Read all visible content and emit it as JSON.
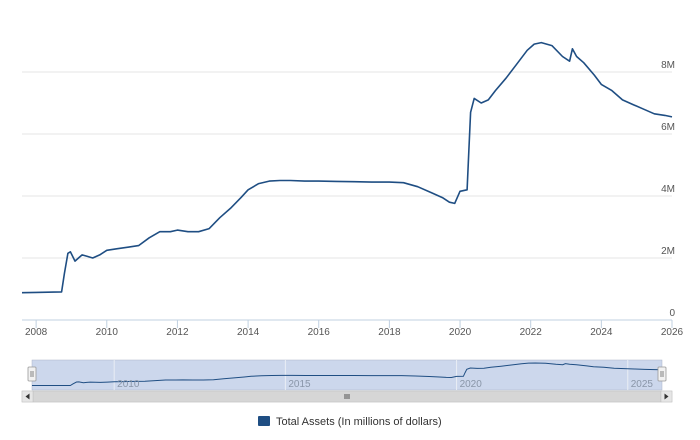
{
  "chart_data": {
    "type": "line",
    "title": "",
    "xlabel": "",
    "ylabel": "",
    "series_name": "Total Assets (In millions of dollars)",
    "series_color": "#1f4e83",
    "xlim": [
      2007.6,
      2026.0
    ],
    "ylim": [
      0,
      10000000
    ],
    "y_ticks": [
      {
        "value": 0,
        "label": "0"
      },
      {
        "value": 2000000,
        "label": "2M"
      },
      {
        "value": 4000000,
        "label": "4M"
      },
      {
        "value": 6000000,
        "label": "6M"
      },
      {
        "value": 8000000,
        "label": "8M"
      }
    ],
    "x_ticks": [
      {
        "value": 2008,
        "label": "2008"
      },
      {
        "value": 2010,
        "label": "2010"
      },
      {
        "value": 2012,
        "label": "2012"
      },
      {
        "value": 2014,
        "label": "2014"
      },
      {
        "value": 2016,
        "label": "2016"
      },
      {
        "value": 2018,
        "label": "2018"
      },
      {
        "value": 2020,
        "label": "2020"
      },
      {
        "value": 2022,
        "label": "2022"
      },
      {
        "value": 2024,
        "label": "2024"
      },
      {
        "value": 2026,
        "label": "2026"
      }
    ],
    "navigator_ticks": [
      {
        "value": 2010,
        "label": "2010"
      },
      {
        "value": 2015,
        "label": "2015"
      },
      {
        "value": 2020,
        "label": "2020"
      },
      {
        "value": 2025,
        "label": "2025"
      }
    ],
    "x": [
      2007.6,
      2008.0,
      2008.5,
      2008.72,
      2008.8,
      2008.9,
      2008.97,
      2009.1,
      2009.2,
      2009.3,
      2009.45,
      2009.6,
      2009.8,
      2010.0,
      2010.3,
      2010.6,
      2010.9,
      2011.2,
      2011.5,
      2011.8,
      2012.0,
      2012.3,
      2012.6,
      2012.9,
      2013.2,
      2013.5,
      2013.8,
      2014.0,
      2014.3,
      2014.6,
      2014.9,
      2015.2,
      2015.6,
      2016.0,
      2016.5,
      2017.0,
      2017.5,
      2018.0,
      2018.4,
      2018.8,
      2019.2,
      2019.5,
      2019.7,
      2019.85,
      2020.0,
      2020.2,
      2020.25,
      2020.3,
      2020.4,
      2020.6,
      2020.8,
      2021.0,
      2021.3,
      2021.6,
      2021.9,
      2022.1,
      2022.3,
      2022.6,
      2022.9,
      2023.1,
      2023.18,
      2023.3,
      2023.5,
      2023.8,
      2024.0,
      2024.3,
      2024.6,
      2024.9,
      2025.2,
      2025.5,
      2025.8,
      2026.0
    ],
    "values": [
      880000,
      890000,
      900000,
      905000,
      1500000,
      2150000,
      2200000,
      1900000,
      2000000,
      2100000,
      2050000,
      2000000,
      2100000,
      2250000,
      2300000,
      2350000,
      2400000,
      2650000,
      2850000,
      2850000,
      2900000,
      2850000,
      2850000,
      2950000,
      3300000,
      3600000,
      3950000,
      4200000,
      4400000,
      4480000,
      4500000,
      4500000,
      4480000,
      4480000,
      4470000,
      4460000,
      4450000,
      4450000,
      4430000,
      4300000,
      4100000,
      3950000,
      3800000,
      3760000,
      4150000,
      4200000,
      5500000,
      6700000,
      7150000,
      7000000,
      7100000,
      7400000,
      7800000,
      8250000,
      8700000,
      8900000,
      8950000,
      8850000,
      8500000,
      8350000,
      8750000,
      8500000,
      8300000,
      7900000,
      7600000,
      7400000,
      7100000,
      6950000,
      6800000,
      6650000,
      6600000,
      6550000
    ]
  }
}
